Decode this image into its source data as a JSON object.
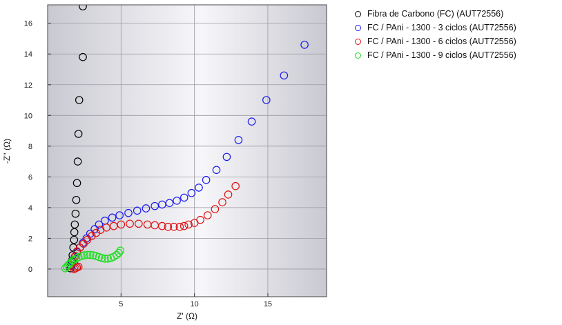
{
  "chart_data": {
    "type": "scatter",
    "xlabel": "Z' (Ω)",
    "ylabel": "-Z'' (Ω)",
    "xlim": [
      0,
      19
    ],
    "ylim": [
      -1.8,
      17.2
    ],
    "xticks": [
      5,
      10,
      15
    ],
    "yticks": [
      0,
      2,
      4,
      6,
      8,
      10,
      12,
      14,
      16
    ],
    "grid": true,
    "legend_position": "right",
    "series": [
      {
        "name": "Fibra de Carbono (FC) (AUT72556)",
        "color": "#000000",
        "points": [
          [
            1.55,
            0.05
          ],
          [
            1.6,
            0.25
          ],
          [
            1.65,
            0.55
          ],
          [
            1.7,
            0.9
          ],
          [
            1.75,
            1.4
          ],
          [
            1.8,
            1.9
          ],
          [
            1.82,
            2.4
          ],
          [
            1.85,
            2.9
          ],
          [
            1.9,
            3.6
          ],
          [
            1.95,
            4.5
          ],
          [
            2.0,
            5.6
          ],
          [
            2.05,
            7.0
          ],
          [
            2.1,
            8.8
          ],
          [
            2.15,
            11.0
          ],
          [
            2.4,
            13.8
          ],
          [
            2.4,
            17.1
          ]
        ]
      },
      {
        "name": "FC / PAni - 1300 - 3 ciclos (AUT72556)",
        "color": "#1a1aee",
        "points": [
          [
            1.6,
            0.2
          ],
          [
            1.7,
            0.5
          ],
          [
            1.85,
            0.8
          ],
          [
            2.0,
            1.1
          ],
          [
            2.2,
            1.4
          ],
          [
            2.4,
            1.7
          ],
          [
            2.65,
            2.0
          ],
          [
            2.9,
            2.3
          ],
          [
            3.2,
            2.6
          ],
          [
            3.5,
            2.9
          ],
          [
            3.9,
            3.15
          ],
          [
            4.4,
            3.35
          ],
          [
            4.9,
            3.5
          ],
          [
            5.5,
            3.65
          ],
          [
            6.1,
            3.8
          ],
          [
            6.7,
            3.95
          ],
          [
            7.3,
            4.1
          ],
          [
            7.8,
            4.2
          ],
          [
            8.3,
            4.3
          ],
          [
            8.8,
            4.45
          ],
          [
            9.3,
            4.65
          ],
          [
            9.8,
            4.95
          ],
          [
            10.3,
            5.3
          ],
          [
            10.8,
            5.8
          ],
          [
            11.5,
            6.45
          ],
          [
            12.2,
            7.3
          ],
          [
            13.0,
            8.4
          ],
          [
            13.9,
            9.6
          ],
          [
            14.9,
            11.0
          ],
          [
            16.1,
            12.6
          ],
          [
            17.5,
            14.6
          ]
        ]
      },
      {
        "name": "FC / PAni - 1300 - 6 ciclos (AUT72556)",
        "color": "#e01010",
        "points": [
          [
            1.8,
            0.0
          ],
          [
            1.9,
            0.05
          ],
          [
            2.0,
            0.1
          ],
          [
            2.1,
            0.15
          ],
          [
            1.8,
            0.5
          ],
          [
            1.9,
            0.85
          ],
          [
            2.0,
            1.15
          ],
          [
            2.2,
            1.4
          ],
          [
            2.45,
            1.65
          ],
          [
            2.7,
            1.9
          ],
          [
            3.0,
            2.15
          ],
          [
            3.3,
            2.35
          ],
          [
            3.6,
            2.55
          ],
          [
            4.0,
            2.7
          ],
          [
            4.5,
            2.8
          ],
          [
            5.0,
            2.9
          ],
          [
            5.6,
            2.95
          ],
          [
            6.2,
            2.95
          ],
          [
            6.8,
            2.9
          ],
          [
            7.3,
            2.85
          ],
          [
            7.8,
            2.8
          ],
          [
            8.2,
            2.75
          ],
          [
            8.6,
            2.75
          ],
          [
            9.0,
            2.75
          ],
          [
            9.3,
            2.8
          ],
          [
            9.6,
            2.9
          ],
          [
            10.0,
            3.0
          ],
          [
            10.4,
            3.2
          ],
          [
            10.9,
            3.5
          ],
          [
            11.4,
            3.9
          ],
          [
            11.9,
            4.35
          ],
          [
            12.3,
            4.85
          ],
          [
            12.8,
            5.4
          ]
        ]
      },
      {
        "name": "FC / PAni - 1300 - 9 ciclos (AUT72556)",
        "color": "#22dd22",
        "points": [
          [
            1.2,
            0.05
          ],
          [
            1.3,
            0.15
          ],
          [
            1.4,
            0.25
          ],
          [
            1.5,
            0.35
          ],
          [
            1.6,
            0.45
          ],
          [
            1.7,
            0.55
          ],
          [
            1.8,
            0.62
          ],
          [
            1.95,
            0.7
          ],
          [
            2.1,
            0.78
          ],
          [
            2.3,
            0.85
          ],
          [
            2.5,
            0.9
          ],
          [
            2.7,
            0.92
          ],
          [
            2.9,
            0.92
          ],
          [
            3.1,
            0.9
          ],
          [
            3.3,
            0.85
          ],
          [
            3.5,
            0.78
          ],
          [
            3.7,
            0.72
          ],
          [
            3.9,
            0.68
          ],
          [
            4.1,
            0.68
          ],
          [
            4.3,
            0.72
          ],
          [
            4.5,
            0.8
          ],
          [
            4.7,
            0.92
          ],
          [
            4.85,
            1.05
          ],
          [
            4.95,
            1.2
          ]
        ]
      }
    ]
  }
}
